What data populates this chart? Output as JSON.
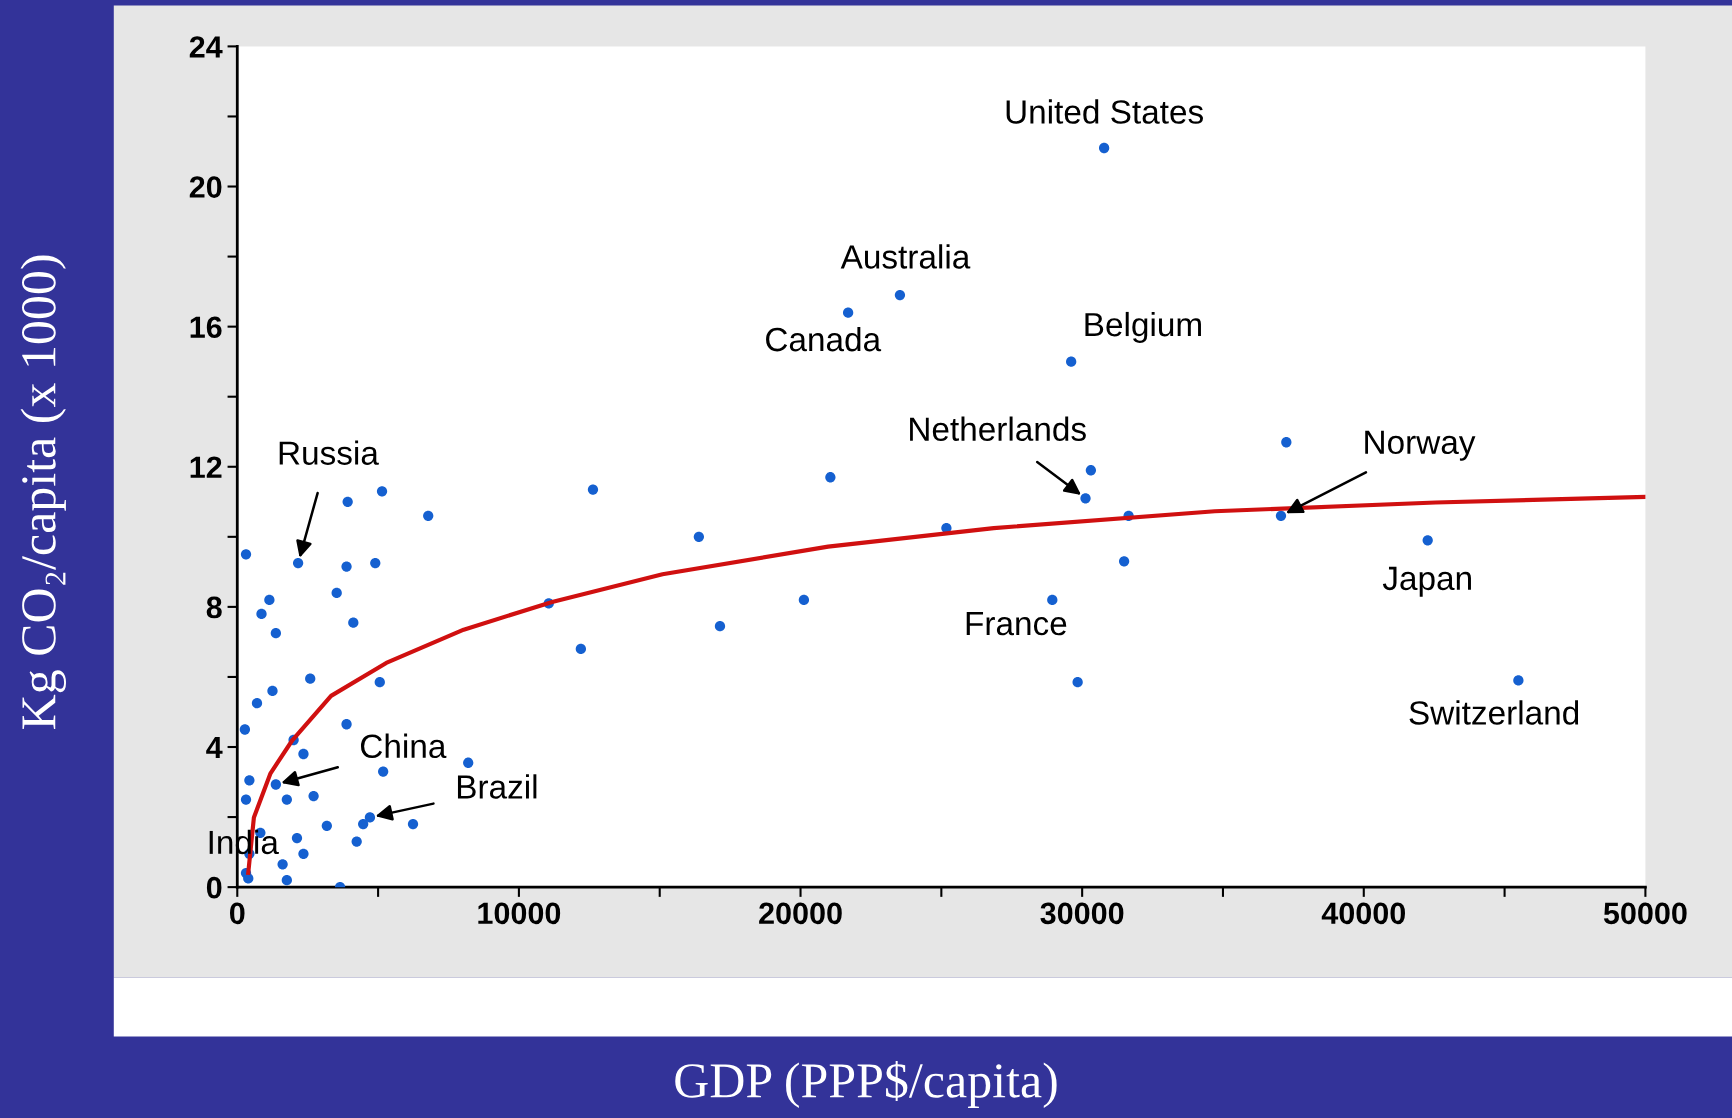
{
  "chart_data": {
    "type": "scatter",
    "xlabel": "GDP (PPP$/capita)",
    "ylabel": "Kg CO₂/capita (x 1000)",
    "xlim": [
      0,
      50000
    ],
    "ylim": [
      0,
      24
    ],
    "xticks": [
      0,
      {
        "value": 5000,
        "label": null
      },
      10000,
      {
        "value": 15000,
        "label": null
      },
      20000,
      {
        "value": 25000,
        "label": null
      },
      30000,
      {
        "value": 35000,
        "label": null
      },
      40000,
      {
        "value": 45000,
        "label": null
      },
      50000
    ],
    "yticks": [
      0,
      {
        "value": 2,
        "label": null
      },
      4,
      {
        "value": 6,
        "label": null
      },
      8,
      {
        "value": 10,
        "label": null
      },
      12,
      {
        "value": 14,
        "label": null
      },
      16,
      {
        "value": 18,
        "label": null
      },
      20,
      {
        "value": 22,
        "label": null
      },
      24
    ],
    "grid": false,
    "legend": false,
    "marker": "circle",
    "series": [
      {
        "color": "#1560d0",
        "x": [
          30780,
          23530,
          21690,
          29610,
          37250,
          30310,
          30120,
          31650,
          37060,
          42270,
          31490,
          25180,
          21060,
          16390,
          12630,
          20120,
          17140,
          11060,
          12200,
          28940,
          29840,
          45490,
          2160,
          5140,
          3920,
          6780,
          310,
          3880,
          4900,
          1140,
          860,
          3530,
          1370,
          4120,
          2590,
          5060,
          1250,
          700,
          270,
          3880,
          2000,
          2350,
          8200,
          5180,
          430,
          2710,
          1760,
          310,
          3180,
          4470,
          6240,
          4240,
          2120,
          820,
          430,
          2350,
          1610,
          310,
          3650,
          1760,
          1370,
          4710,
          390
        ],
        "values": [
          21.1,
          16.9,
          16.4,
          15.0,
          12.7,
          11.9,
          11.1,
          10.6,
          10.6,
          9.9,
          9.3,
          10.25,
          11.7,
          10.0,
          11.35,
          8.2,
          7.45,
          8.1,
          6.8,
          8.2,
          5.85,
          5.9,
          9.25,
          11.3,
          11.0,
          10.6,
          9.5,
          9.15,
          9.25,
          8.2,
          7.8,
          8.4,
          7.25,
          7.55,
          5.95,
          5.85,
          5.6,
          5.25,
          4.5,
          4.65,
          4.2,
          3.8,
          3.55,
          3.3,
          3.05,
          2.6,
          2.5,
          2.5,
          1.75,
          1.8,
          1.8,
          1.3,
          1.4,
          1.55,
          0.95,
          0.95,
          0.65,
          0.4,
          0.0,
          0.2,
          2.93,
          1.99,
          0.25
        ]
      },
      {
        "type": "line",
        "color": "#d01010",
        "marker": "none",
        "line_style": "solid",
        "x": [
          390,
          590,
          1180,
          1960,
          3330,
          5290,
          8040,
          11180,
          15100,
          20980,
          26860,
          34710,
          42550,
          50000
        ],
        "values": [
          0.41,
          1.99,
          3.25,
          4.2,
          5.46,
          6.4,
          7.35,
          8.14,
          8.93,
          9.72,
          10.25,
          10.73,
          10.98,
          11.14
        ]
      }
    ],
    "annotations": [
      {
        "text": "United States",
        "x": 30780,
        "y": 21.1
      },
      {
        "text": "Australia",
        "x": 23530,
        "y": 16.9
      },
      {
        "text": "Canada",
        "x": 21690,
        "y": 16.4
      },
      {
        "text": "Belgium",
        "x": 29610,
        "y": 15.0
      },
      {
        "text": "Netherlands",
        "x": 30120,
        "y": 11.1
      },
      {
        "text": "Norway",
        "x": 37060,
        "y": 10.6
      },
      {
        "text": "Japan",
        "x": 42270,
        "y": 9.9
      },
      {
        "text": "France",
        "x": 28940,
        "y": 8.2
      },
      {
        "text": "Switzerland",
        "x": 45490,
        "y": 5.9
      },
      {
        "text": "Russia",
        "x": 2160,
        "y": 9.25
      },
      {
        "text": "China",
        "x": 1370,
        "y": 2.93
      },
      {
        "text": "Brazil",
        "x": 4710,
        "y": 1.99
      },
      {
        "text": "India",
        "x": 390,
        "y": 0.25
      }
    ]
  }
}
